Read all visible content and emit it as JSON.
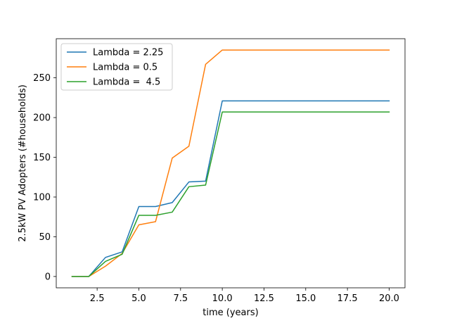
{
  "chart_data": {
    "type": "line",
    "xlabel": "time (years)",
    "ylabel": "2.5kW PV Adopters (#households)",
    "xlim": [
      0.05,
      20.95
    ],
    "ylim": [
      -14.25,
      299.25
    ],
    "xticks": [
      2.5,
      5.0,
      7.5,
      10.0,
      12.5,
      15.0,
      17.5,
      20.0
    ],
    "xtick_labels": [
      "2.5",
      "5.0",
      "7.5",
      "10.0",
      "12.5",
      "15.0",
      "17.5",
      "20.0"
    ],
    "yticks": [
      0,
      50,
      100,
      150,
      200,
      250
    ],
    "ytick_labels": [
      "0",
      "50",
      "100",
      "150",
      "200",
      "250"
    ],
    "grid": false,
    "legend_position": "upper-left",
    "x": [
      1,
      2,
      3,
      4,
      5,
      6,
      7,
      8,
      9,
      10,
      11,
      12,
      13,
      14,
      15,
      16,
      17,
      18,
      19,
      20
    ],
    "series": [
      {
        "name": "Lambda = 2.25",
        "color": "#1f77b4",
        "values": [
          0,
          0,
          24,
          31,
          88,
          88,
          93,
          119,
          120,
          221,
          221,
          221,
          221,
          221,
          221,
          221,
          221,
          221,
          221,
          221
        ]
      },
      {
        "name": "Lambda = 0.5",
        "color": "#ff7f0e",
        "values": [
          0,
          0,
          13,
          29,
          65,
          69,
          149,
          164,
          267,
          285,
          285,
          285,
          285,
          285,
          285,
          285,
          285,
          285,
          285,
          285
        ]
      },
      {
        "name": "Lambda =  4.5",
        "color": "#2ca02c",
        "values": [
          0,
          0,
          19,
          28,
          77,
          77,
          81,
          113,
          115,
          207,
          207,
          207,
          207,
          207,
          207,
          207,
          207,
          207,
          207,
          207
        ]
      }
    ]
  }
}
